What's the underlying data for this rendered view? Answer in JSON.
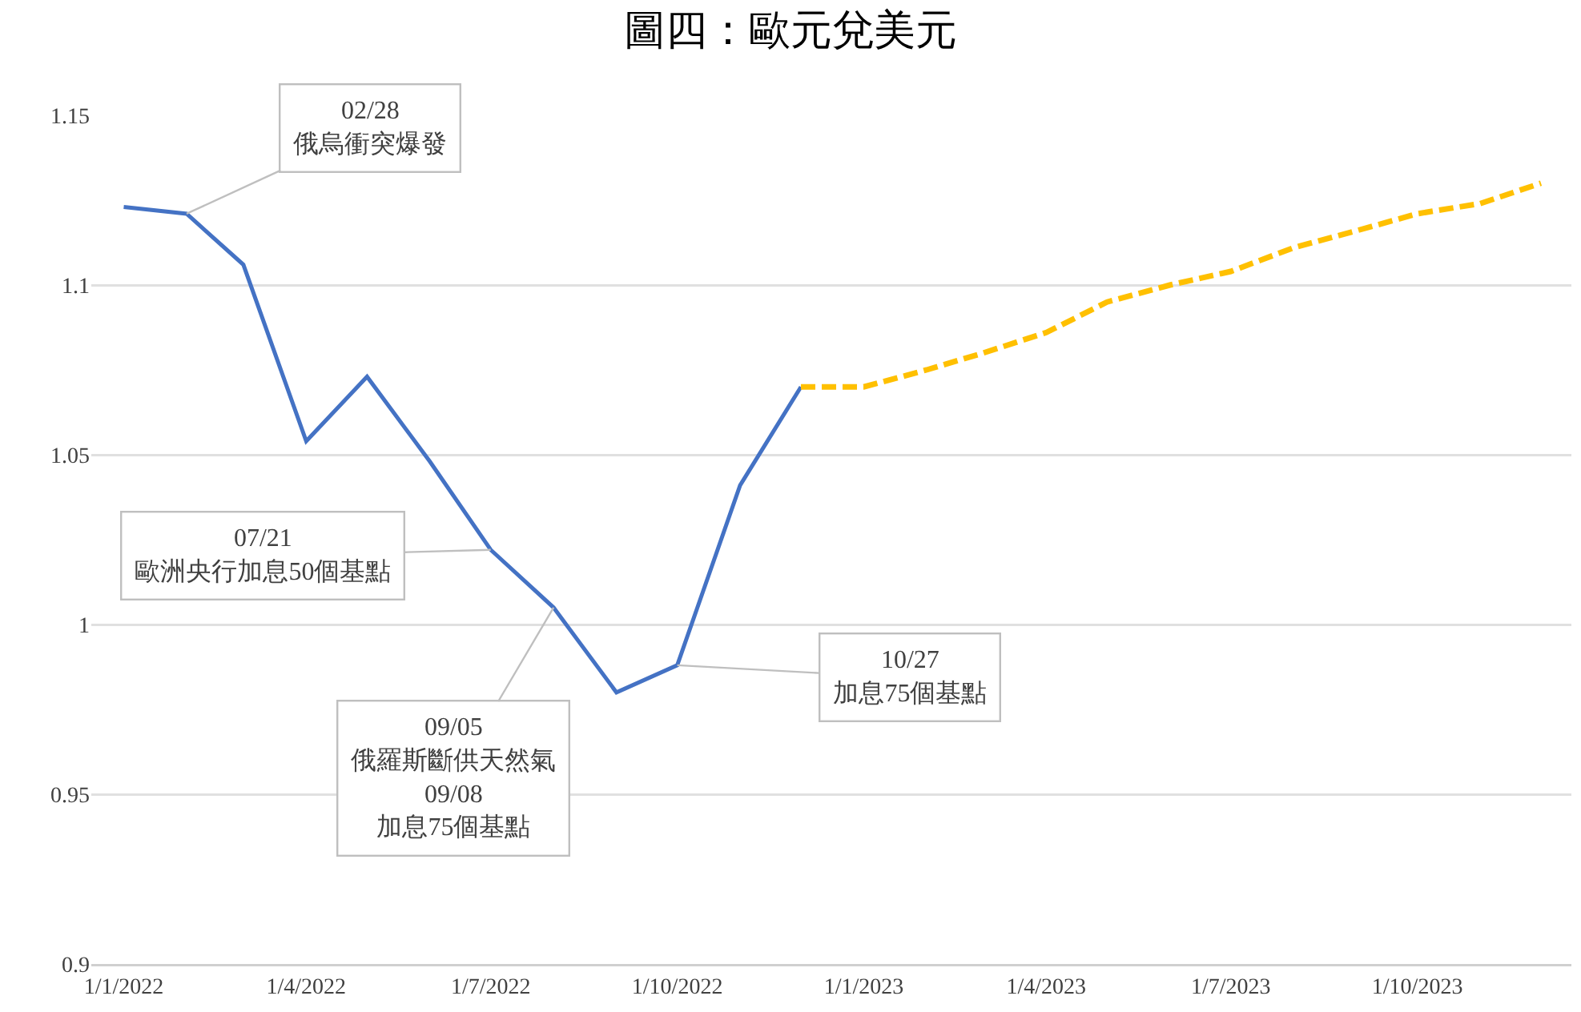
{
  "chart_data": {
    "type": "line",
    "title": "圖四：歐元兌美元",
    "series": [
      {
        "color": "#4472c4",
        "line_style": "solid",
        "x": [
          "2022-01-01",
          "2022-02-01",
          "2022-03-01",
          "2022-04-01",
          "2022-05-01",
          "2022-06-01",
          "2022-07-01",
          "2022-08-01",
          "2022-09-01",
          "2022-10-01",
          "2022-11-01",
          "2022-12-01"
        ],
        "values": [
          1.123,
          1.121,
          1.106,
          1.054,
          1.073,
          1.048,
          1.022,
          1.005,
          0.98,
          0.988,
          1.041,
          1.07
        ]
      },
      {
        "color": "#ffc000",
        "line_style": "dashed",
        "x": [
          "2022-12-01",
          "2023-01-01",
          "2023-02-01",
          "2023-03-01",
          "2023-04-01",
          "2023-05-01",
          "2023-06-01",
          "2023-07-01",
          "2023-08-01",
          "2023-09-01",
          "2023-10-01",
          "2023-11-01",
          "2023-12-01"
        ],
        "values": [
          1.07,
          1.07,
          1.075,
          1.08,
          1.086,
          1.095,
          1.1,
          1.104,
          1.111,
          1.116,
          1.121,
          1.124,
          1.13
        ]
      }
    ],
    "xlim": [
      "2021-12-16",
      "2023-12-16"
    ],
    "xticks": [
      {
        "value": "2022-01-01",
        "label": "1/1/2022"
      },
      {
        "value": "2022-04-01",
        "label": "1/4/2022"
      },
      {
        "value": "2022-07-01",
        "label": "1/7/2022"
      },
      {
        "value": "2022-10-01",
        "label": "1/10/2022"
      },
      {
        "value": "2023-01-01",
        "label": "1/1/2023"
      },
      {
        "value": "2023-04-01",
        "label": "1/4/2023"
      },
      {
        "value": "2023-07-01",
        "label": "1/7/2023"
      },
      {
        "value": "2023-10-01",
        "label": "1/10/2023"
      }
    ],
    "ylim": [
      0.9,
      1.15
    ],
    "yticks": [
      0.9,
      0.95,
      1,
      1.05,
      1.1,
      1.15
    ],
    "grid": "y",
    "marker": "none",
    "annotations": [
      {
        "text": "02/28\n俄烏衝突爆發",
        "x": "2022-02-01",
        "y": 1.121
      },
      {
        "text": "07/21\n歐洲央行加息50個基點",
        "x": "2022-07-01",
        "y": 1.022
      },
      {
        "text": "09/05\n俄羅斯斷供天然氣\n09/08\n加息75個基點",
        "x": "2022-08-01",
        "y": 1.005
      },
      {
        "text": "10/27\n加息75個基點",
        "x": "2022-10-01",
        "y": 0.988
      }
    ]
  }
}
